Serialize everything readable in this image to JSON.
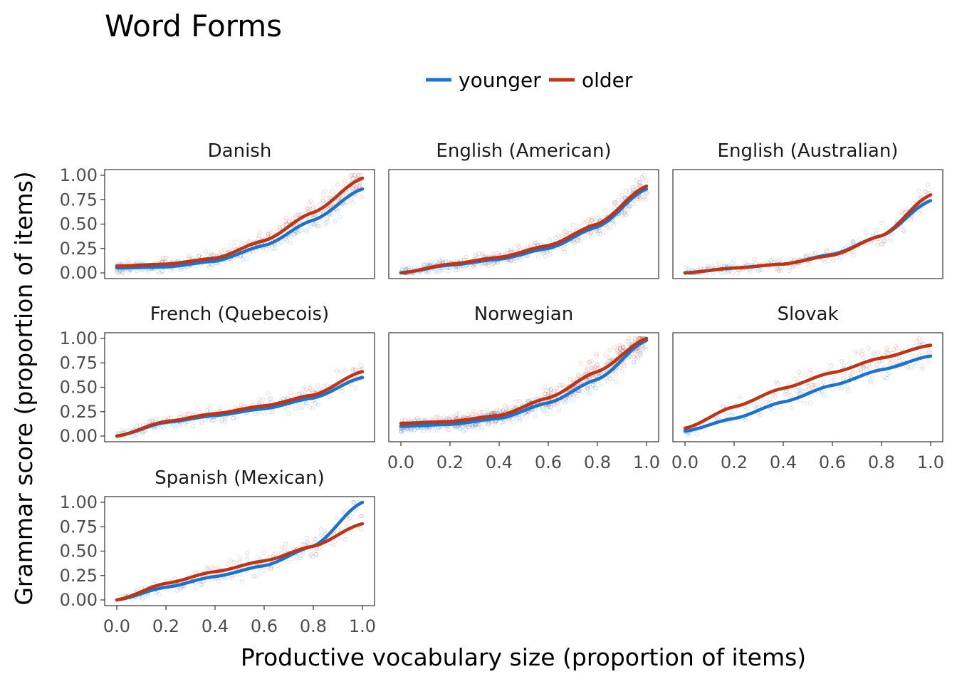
{
  "chart_data": {
    "type": "scatter",
    "title": "Word Forms",
    "xlabel": "Productive vocabulary size (proportion of items)",
    "ylabel": "Grammar score (proportion of items)",
    "xlim": [
      0,
      1
    ],
    "ylim": [
      0,
      1
    ],
    "x_ticks": [
      "0.0",
      "0.2",
      "0.4",
      "0.6",
      "0.8",
      "1.0"
    ],
    "y_ticks": [
      "0.00",
      "0.25",
      "0.50",
      "0.75",
      "1.00"
    ],
    "legend": {
      "position": "top",
      "items": [
        {
          "name": "younger",
          "color": "#2171c7"
        },
        {
          "name": "older",
          "color": "#b8361b"
        }
      ]
    },
    "grid": false,
    "panels": [
      {
        "name": "Danish",
        "x_range": [
          0.0,
          1.0
        ],
        "series": [
          {
            "name": "younger",
            "fit": [
              [
                0.0,
                0.05
              ],
              [
                0.2,
                0.06
              ],
              [
                0.4,
                0.12
              ],
              [
                0.6,
                0.28
              ],
              [
                0.8,
                0.54
              ],
              [
                1.0,
                0.86
              ]
            ]
          },
          {
            "name": "older",
            "fit": [
              [
                0.0,
                0.07
              ],
              [
                0.2,
                0.09
              ],
              [
                0.4,
                0.15
              ],
              [
                0.6,
                0.33
              ],
              [
                0.8,
                0.62
              ],
              [
                1.0,
                0.97
              ]
            ]
          }
        ]
      },
      {
        "name": "English (American)",
        "x_range": [
          0.0,
          1.0
        ],
        "series": [
          {
            "name": "younger",
            "fit": [
              [
                0.0,
                0.0
              ],
              [
                0.2,
                0.08
              ],
              [
                0.4,
                0.14
              ],
              [
                0.6,
                0.25
              ],
              [
                0.8,
                0.47
              ],
              [
                1.0,
                0.86
              ]
            ]
          },
          {
            "name": "older",
            "fit": [
              [
                0.0,
                0.0
              ],
              [
                0.2,
                0.09
              ],
              [
                0.4,
                0.16
              ],
              [
                0.6,
                0.28
              ],
              [
                0.8,
                0.5
              ],
              [
                1.0,
                0.89
              ]
            ]
          }
        ]
      },
      {
        "name": "English (Australian)",
        "x_range": [
          0.0,
          1.0
        ],
        "series": [
          {
            "name": "younger",
            "fit": [
              [
                0.0,
                0.0
              ],
              [
                0.2,
                0.05
              ],
              [
                0.4,
                0.09
              ],
              [
                0.6,
                0.19
              ],
              [
                0.8,
                0.38
              ],
              [
                1.0,
                0.74
              ]
            ]
          },
          {
            "name": "older",
            "fit": [
              [
                0.0,
                0.0
              ],
              [
                0.2,
                0.05
              ],
              [
                0.4,
                0.09
              ],
              [
                0.6,
                0.18
              ],
              [
                0.8,
                0.38
              ],
              [
                1.0,
                0.8
              ]
            ]
          }
        ]
      },
      {
        "name": "French (Quebecois)",
        "x_range": [
          0.0,
          1.0
        ],
        "series": [
          {
            "name": "younger",
            "fit": [
              [
                0.0,
                0.0
              ],
              [
                0.2,
                0.14
              ],
              [
                0.4,
                0.21
              ],
              [
                0.6,
                0.28
              ],
              [
                0.8,
                0.39
              ],
              [
                1.0,
                0.6
              ]
            ]
          },
          {
            "name": "older",
            "fit": [
              [
                0.0,
                0.0
              ],
              [
                0.2,
                0.15
              ],
              [
                0.4,
                0.23
              ],
              [
                0.6,
                0.31
              ],
              [
                0.8,
                0.42
              ],
              [
                1.0,
                0.66
              ]
            ]
          }
        ]
      },
      {
        "name": "Norwegian",
        "x_range": [
          0.0,
          1.0
        ],
        "series": [
          {
            "name": "younger",
            "fit": [
              [
                0.0,
                0.1
              ],
              [
                0.2,
                0.12
              ],
              [
                0.4,
                0.18
              ],
              [
                0.6,
                0.34
              ],
              [
                0.8,
                0.58
              ],
              [
                1.0,
                0.98
              ]
            ]
          },
          {
            "name": "older",
            "fit": [
              [
                0.0,
                0.13
              ],
              [
                0.2,
                0.15
              ],
              [
                0.4,
                0.21
              ],
              [
                0.6,
                0.39
              ],
              [
                0.8,
                0.66
              ],
              [
                1.0,
                1.0
              ]
            ]
          }
        ]
      },
      {
        "name": "Slovak",
        "x_range": [
          0.0,
          1.0
        ],
        "series": [
          {
            "name": "younger",
            "fit": [
              [
                0.0,
                0.05
              ],
              [
                0.2,
                0.18
              ],
              [
                0.4,
                0.35
              ],
              [
                0.6,
                0.52
              ],
              [
                0.8,
                0.68
              ],
              [
                1.0,
                0.82
              ]
            ]
          },
          {
            "name": "older",
            "fit": [
              [
                0.0,
                0.08
              ],
              [
                0.2,
                0.3
              ],
              [
                0.4,
                0.49
              ],
              [
                0.6,
                0.65
              ],
              [
                0.8,
                0.8
              ],
              [
                1.0,
                0.93
              ]
            ]
          }
        ]
      },
      {
        "name": "Spanish (Mexican)",
        "x_range": [
          0.0,
          1.0
        ],
        "series": [
          {
            "name": "younger",
            "fit": [
              [
                0.0,
                0.0
              ],
              [
                0.2,
                0.13
              ],
              [
                0.4,
                0.24
              ],
              [
                0.6,
                0.35
              ],
              [
                0.8,
                0.55
              ],
              [
                1.0,
                1.0
              ]
            ]
          },
          {
            "name": "older",
            "fit": [
              [
                0.0,
                0.0
              ],
              [
                0.2,
                0.17
              ],
              [
                0.4,
                0.29
              ],
              [
                0.6,
                0.4
              ],
              [
                0.8,
                0.55
              ],
              [
                1.0,
                0.78
              ]
            ]
          }
        ]
      }
    ]
  }
}
